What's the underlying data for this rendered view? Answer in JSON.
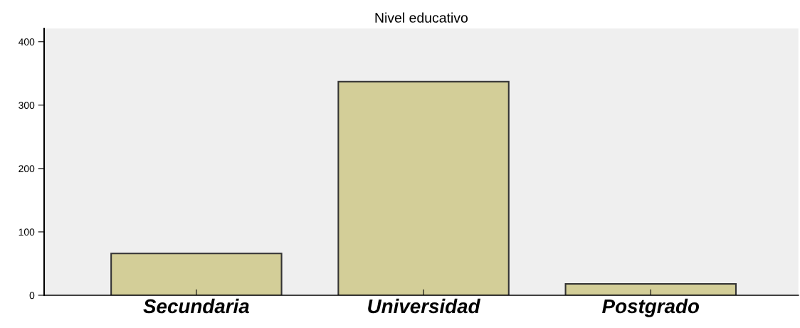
{
  "chart_data": {
    "type": "bar",
    "title": "Nivel educativo",
    "categories": [
      "Secundaria",
      "Universidad",
      "Postgrado"
    ],
    "values": [
      66,
      337,
      18
    ],
    "color": "#d3ce98",
    "ylim": [
      0,
      421
    ],
    "yticks": [
      0,
      100,
      200,
      300,
      400
    ],
    "grid": false
  }
}
